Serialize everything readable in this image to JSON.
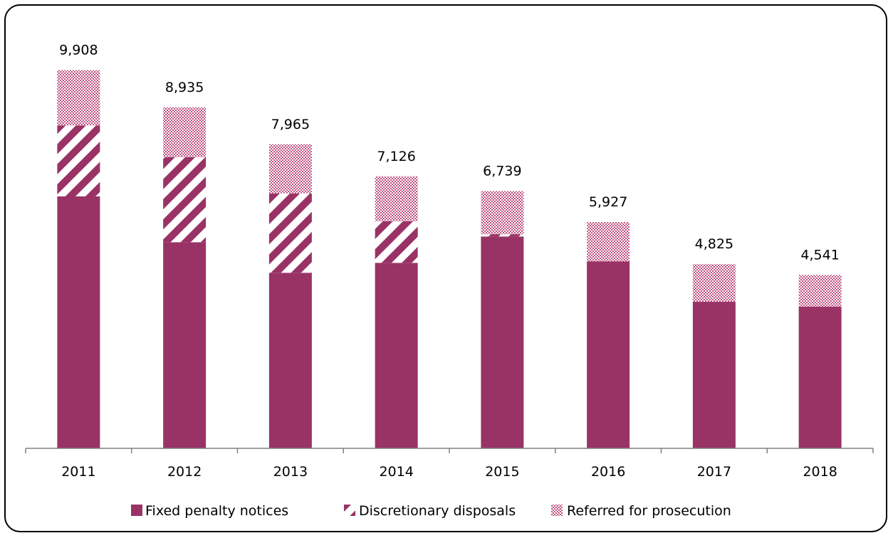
{
  "colors": {
    "fixed": "#993366",
    "discretionary_stripe": "#993366",
    "referred_check": "#c0507f",
    "axis": "#808080"
  },
  "chart_data": {
    "type": "bar",
    "stacked": true,
    "categories": [
      "2011",
      "2012",
      "2013",
      "2014",
      "2015",
      "2016",
      "2017",
      "2018"
    ],
    "series": [
      {
        "name": "Fixed penalty notices",
        "values": [
          6600,
          5400,
          4600,
          4860,
          5550,
          4900,
          3840,
          3710
        ]
      },
      {
        "name": "Discretionary disposals",
        "values": [
          1860,
          2230,
          2080,
          1090,
          60,
          0,
          0,
          0
        ]
      },
      {
        "name": "Referred for prosecution",
        "values": [
          1448,
          1305,
          1285,
          1176,
          1129,
          1027,
          985,
          831
        ]
      }
    ],
    "totals": [
      "9,908",
      "8,935",
      "7,965",
      "7,126",
      "6,739",
      "5,927",
      "4,825",
      "4,541"
    ],
    "ylim": [
      0,
      11000
    ],
    "legend": "bottom",
    "grid": false
  }
}
